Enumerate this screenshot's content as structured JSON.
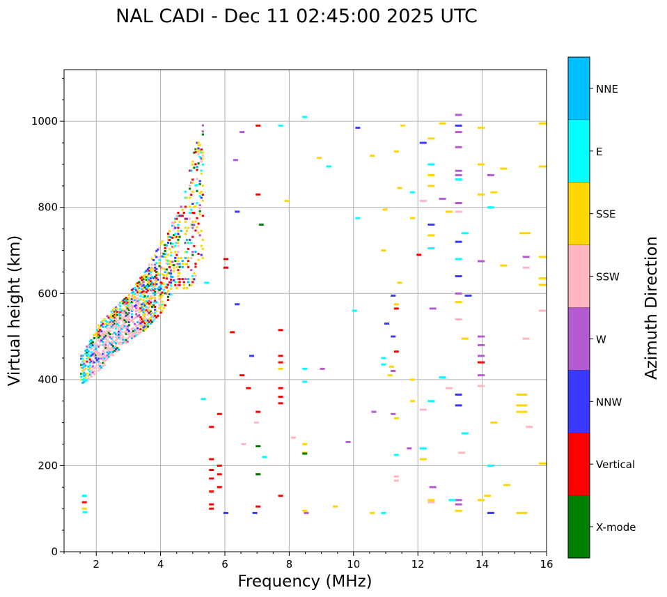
{
  "chart_data": {
    "type": "scatter",
    "title": "NAL CADI - Dec 11 02:45:00 2025 UTC",
    "xlabel": "Frequency (MHz)",
    "ylabel": "Virtual height (km)",
    "xlim": [
      1,
      16
    ],
    "ylim": [
      0,
      1120
    ],
    "xticks": [
      2,
      4,
      6,
      8,
      10,
      12,
      14,
      16
    ],
    "yticks": [
      0,
      200,
      400,
      600,
      800,
      1000
    ],
    "grid": true,
    "colorbar": {
      "label": "Azimuth Direction",
      "categories": [
        "X-mode",
        "Vertical",
        "NNW",
        "W",
        "SSW",
        "SSE",
        "E",
        "NNE"
      ],
      "colors": [
        "#008000",
        "#ff0000",
        "#3a3aff",
        "#b45ad2",
        "#ffb6c1",
        "#ffd700",
        "#00ffff",
        "#00bfff"
      ]
    },
    "trace": {
      "description": "main F-layer echo trace",
      "lower_edge": [
        [
          1.55,
          390
        ],
        [
          2.0,
          415
        ],
        [
          2.5,
          455
        ],
        [
          3.0,
          490
        ],
        [
          3.5,
          515
        ],
        [
          4.0,
          555
        ],
        [
          4.4,
          610
        ]
      ],
      "upper_edge": [
        [
          1.55,
          460
        ],
        [
          2.0,
          520
        ],
        [
          2.5,
          560
        ],
        [
          3.0,
          600
        ],
        [
          3.5,
          650
        ],
        [
          4.0,
          720
        ],
        [
          4.6,
          800
        ],
        [
          5.2,
          1000
        ]
      ]
    },
    "points": [
      [
        1.6,
        130,
        "E"
      ],
      [
        1.6,
        115,
        "Vertical"
      ],
      [
        1.6,
        100,
        "SSE"
      ],
      [
        1.62,
        92,
        "E"
      ],
      [
        5.55,
        100,
        "Vertical"
      ],
      [
        5.55,
        110,
        "Vertical"
      ],
      [
        5.55,
        140,
        "Vertical"
      ],
      [
        5.55,
        170,
        "Vertical"
      ],
      [
        5.55,
        190,
        "Vertical"
      ],
      [
        5.55,
        215,
        "Vertical"
      ],
      [
        5.55,
        290,
        "Vertical"
      ],
      [
        5.8,
        320,
        "Vertical"
      ],
      [
        5.8,
        200,
        "Vertical"
      ],
      [
        5.8,
        180,
        "Vertical"
      ],
      [
        5.8,
        150,
        "Vertical"
      ],
      [
        6.0,
        660,
        "Vertical"
      ],
      [
        6.0,
        680,
        "Vertical"
      ],
      [
        6.2,
        510,
        "Vertical"
      ],
      [
        6.5,
        410,
        "Vertical"
      ],
      [
        6.7,
        380,
        "Vertical"
      ],
      [
        7.0,
        325,
        "Vertical"
      ],
      [
        7.0,
        180,
        "Vertical"
      ],
      [
        7.0,
        105,
        "Vertical"
      ],
      [
        7.0,
        990,
        "Vertical"
      ],
      [
        7.0,
        830,
        "Vertical"
      ],
      [
        7.7,
        380,
        "Vertical"
      ],
      [
        7.7,
        360,
        "Vertical"
      ],
      [
        7.7,
        345,
        "Vertical"
      ],
      [
        7.7,
        130,
        "Vertical"
      ],
      [
        7.7,
        455,
        "Vertical"
      ],
      [
        7.7,
        440,
        "Vertical"
      ],
      [
        7.7,
        515,
        "Vertical"
      ],
      [
        11.3,
        465,
        "Vertical"
      ],
      [
        11.3,
        565,
        "Vertical"
      ],
      [
        12.0,
        690,
        "Vertical"
      ],
      [
        13.9,
        440,
        "Vertical"
      ],
      [
        6.0,
        90,
        "NNW"
      ],
      [
        6.35,
        790,
        "NNW"
      ],
      [
        6.35,
        575,
        "NNW"
      ],
      [
        6.8,
        455,
        "NNW"
      ],
      [
        6.9,
        90,
        "NNW"
      ],
      [
        10.1,
        985,
        "NNW"
      ],
      [
        11.0,
        530,
        "NNW"
      ],
      [
        11.2,
        595,
        "NNW"
      ],
      [
        11.2,
        500,
        "NNW"
      ],
      [
        12.1,
        950,
        "NNW"
      ],
      [
        12.35,
        760,
        "NNW"
      ],
      [
        13.2,
        340,
        "NNW"
      ],
      [
        13.2,
        365,
        "NNW"
      ],
      [
        13.2,
        640,
        "NNW"
      ],
      [
        13.2,
        720,
        "NNW"
      ],
      [
        13.2,
        990,
        "NNW"
      ],
      [
        13.5,
        595,
        "NNW"
      ],
      [
        14.2,
        90,
        "NNW"
      ],
      [
        6.5,
        975,
        "W"
      ],
      [
        6.3,
        910,
        "W"
      ],
      [
        8.5,
        90,
        "W"
      ],
      [
        9.0,
        425,
        "W"
      ],
      [
        9.8,
        255,
        "W"
      ],
      [
        10.6,
        325,
        "W"
      ],
      [
        11.2,
        320,
        "W"
      ],
      [
        11.2,
        420,
        "W"
      ],
      [
        11.7,
        240,
        "W"
      ],
      [
        12.4,
        150,
        "W"
      ],
      [
        12.4,
        565,
        "W"
      ],
      [
        12.7,
        820,
        "W"
      ],
      [
        13.2,
        1015,
        "W"
      ],
      [
        13.2,
        975,
        "W"
      ],
      [
        13.2,
        940,
        "W"
      ],
      [
        13.2,
        885,
        "W"
      ],
      [
        13.2,
        875,
        "W"
      ],
      [
        13.2,
        810,
        "W"
      ],
      [
        13.2,
        120,
        "W"
      ],
      [
        13.2,
        110,
        "W"
      ],
      [
        13.2,
        600,
        "W"
      ],
      [
        13.9,
        675,
        "W"
      ],
      [
        13.9,
        500,
        "W"
      ],
      [
        13.9,
        480,
        "W"
      ],
      [
        13.9,
        455,
        "W"
      ],
      [
        13.9,
        410,
        "W"
      ],
      [
        14.2,
        875,
        "W"
      ],
      [
        15.3,
        685,
        "W"
      ],
      [
        6.55,
        250,
        "SSW"
      ],
      [
        6.95,
        300,
        "SSW"
      ],
      [
        8.1,
        265,
        "SSW"
      ],
      [
        11.3,
        175,
        "SSW"
      ],
      [
        12.1,
        330,
        "SSW"
      ],
      [
        12.1,
        815,
        "SSW"
      ],
      [
        12.35,
        115,
        "SSW"
      ],
      [
        12.9,
        380,
        "SSW"
      ],
      [
        13.3,
        230,
        "SSW"
      ],
      [
        13.2,
        540,
        "SSW"
      ],
      [
        13.2,
        790,
        "SSW"
      ],
      [
        13.9,
        385,
        "SSW"
      ],
      [
        15.3,
        660,
        "SSW"
      ],
      [
        15.3,
        495,
        "SSW"
      ],
      [
        15.4,
        290,
        "SSW"
      ],
      [
        15.8,
        560,
        "SSW"
      ],
      [
        11.3,
        165,
        "SSW"
      ],
      [
        8.45,
        250,
        "SSE"
      ],
      [
        8.45,
        230,
        "SSE"
      ],
      [
        8.45,
        95,
        "SSE"
      ],
      [
        8.9,
        915,
        "SSE"
      ],
      [
        9.4,
        105,
        "SSE"
      ],
      [
        10.55,
        90,
        "SSE"
      ],
      [
        10.55,
        920,
        "SSE"
      ],
      [
        10.9,
        700,
        "SSE"
      ],
      [
        10.95,
        795,
        "SSE"
      ],
      [
        11.1,
        410,
        "SSE"
      ],
      [
        11.15,
        430,
        "SSE"
      ],
      [
        11.3,
        575,
        "SSE"
      ],
      [
        11.3,
        930,
        "SSE"
      ],
      [
        11.3,
        310,
        "SSE"
      ],
      [
        11.4,
        625,
        "SSE"
      ],
      [
        11.4,
        845,
        "SSE"
      ],
      [
        11.5,
        990,
        "SSE"
      ],
      [
        11.8,
        400,
        "SSE"
      ],
      [
        11.8,
        350,
        "SSE"
      ],
      [
        11.8,
        775,
        "SSE"
      ],
      [
        12.1,
        215,
        "SSE"
      ],
      [
        12.35,
        960,
        "SSE"
      ],
      [
        12.35,
        875,
        "SSE"
      ],
      [
        12.35,
        850,
        "SSE"
      ],
      [
        12.35,
        735,
        "SSE"
      ],
      [
        12.35,
        120,
        "SSE"
      ],
      [
        12.7,
        995,
        "SSE"
      ],
      [
        12.9,
        790,
        "SSE"
      ],
      [
        13.2,
        580,
        "SSE"
      ],
      [
        13.2,
        95,
        "SSE"
      ],
      [
        13.4,
        495,
        "SSE"
      ],
      [
        13.9,
        985,
        "SSE"
      ],
      [
        13.9,
        900,
        "SSE"
      ],
      [
        13.9,
        830,
        "SSE"
      ],
      [
        13.9,
        120,
        "SSE"
      ],
      [
        14.1,
        130,
        "SSE"
      ],
      [
        14.3,
        300,
        "SSE"
      ],
      [
        14.3,
        835,
        "SSE"
      ],
      [
        14.6,
        890,
        "SSE"
      ],
      [
        14.6,
        665,
        "SSE"
      ],
      [
        14.7,
        155,
        "SSE"
      ],
      [
        15.1,
        365,
        "SSE"
      ],
      [
        15.1,
        340,
        "SSE"
      ],
      [
        15.1,
        325,
        "SSE"
      ],
      [
        15.1,
        90,
        "SSE"
      ],
      [
        15.2,
        740,
        "SSE"
      ],
      [
        15.8,
        995,
        "SSE"
      ],
      [
        15.8,
        895,
        "SSE"
      ],
      [
        15.8,
        685,
        "SSE"
      ],
      [
        15.8,
        635,
        "SSE"
      ],
      [
        15.8,
        620,
        "SSE"
      ],
      [
        15.8,
        205,
        "SSE"
      ],
      [
        7.7,
        425,
        "SSE"
      ],
      [
        7.9,
        815,
        "SSE"
      ],
      [
        5.3,
        355,
        "E"
      ],
      [
        5.4,
        625,
        "E"
      ],
      [
        7.2,
        220,
        "E"
      ],
      [
        7.7,
        990,
        "E"
      ],
      [
        8.45,
        1010,
        "E"
      ],
      [
        8.45,
        425,
        "E"
      ],
      [
        8.45,
        395,
        "E"
      ],
      [
        9.2,
        895,
        "E"
      ],
      [
        10.0,
        560,
        "E"
      ],
      [
        10.1,
        775,
        "E"
      ],
      [
        10.9,
        90,
        "E"
      ],
      [
        10.9,
        450,
        "E"
      ],
      [
        10.9,
        435,
        "E"
      ],
      [
        11.3,
        225,
        "E"
      ],
      [
        11.8,
        835,
        "E"
      ],
      [
        12.1,
        240,
        "E"
      ],
      [
        12.35,
        900,
        "E"
      ],
      [
        12.35,
        705,
        "E"
      ],
      [
        12.35,
        350,
        "E"
      ],
      [
        12.7,
        405,
        "E"
      ],
      [
        13.0,
        120,
        "E"
      ],
      [
        13.2,
        865,
        "E"
      ],
      [
        13.2,
        680,
        "E"
      ],
      [
        13.4,
        740,
        "E"
      ],
      [
        13.4,
        275,
        "E"
      ],
      [
        14.2,
        800,
        "E"
      ],
      [
        14.2,
        200,
        "E"
      ],
      [
        7.0,
        245,
        "X-mode"
      ],
      [
        7.0,
        180,
        "X-mode"
      ],
      [
        7.1,
        760,
        "X-mode"
      ],
      [
        8.45,
        228,
        "X-mode"
      ]
    ]
  }
}
